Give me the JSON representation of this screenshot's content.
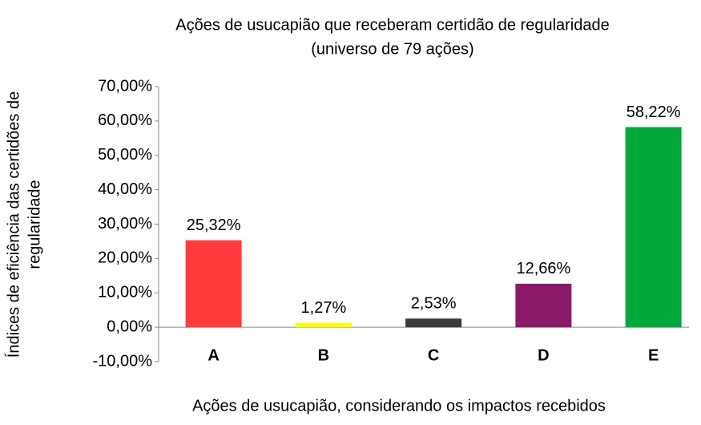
{
  "chart_data": {
    "type": "bar",
    "title": [
      "Ações de usucapião que receberam certidão de regularidade",
      "(universo de 79 ações)"
    ],
    "xlabel": "Ações de usucapião, considerando os impactos recebidos",
    "ylabel": [
      "Índices de eficiência das certidões de",
      "regularidade"
    ],
    "categories": [
      "A",
      "B",
      "C",
      "D",
      "E"
    ],
    "values": [
      25.32,
      1.27,
      2.53,
      12.66,
      58.22
    ],
    "value_labels": [
      "25,32%",
      "1,27%",
      "2,53%",
      "12,66%",
      "58,22%"
    ],
    "colors": [
      "#ff3b3b",
      "#ffff00",
      "#3a3a3a",
      "#8b1a6b",
      "#00a83a"
    ],
    "ylim": [
      -10,
      70
    ],
    "yticks": [
      {
        "value": -10,
        "label": "-10,00%"
      },
      {
        "value": 0,
        "label": "0,00%"
      },
      {
        "value": 10,
        "label": "10,00%"
      },
      {
        "value": 20,
        "label": "20,00%"
      },
      {
        "value": 30,
        "label": "30,00%"
      },
      {
        "value": 40,
        "label": "40,00%"
      },
      {
        "value": 50,
        "label": "50,00%"
      },
      {
        "value": 60,
        "label": "60,00%"
      },
      {
        "value": 70,
        "label": "70,00%"
      }
    ],
    "grid": false
  }
}
